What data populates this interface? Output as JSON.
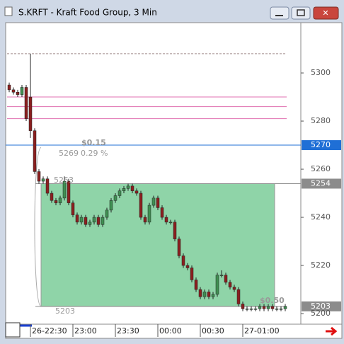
{
  "window_title": "S.KRFT - Kraft Food Group, 3 Min",
  "chart_data": {
    "type": "candlestick",
    "categories": [
      null,
      null,
      null,
      null,
      null,
      "26-22:30",
      null,
      null,
      null,
      null,
      null,
      null,
      null,
      null,
      null,
      "23:00",
      null,
      null,
      null,
      null,
      null,
      null,
      null,
      null,
      null,
      "23:30",
      null,
      null,
      null,
      null,
      null,
      null,
      null,
      null,
      null,
      "00:00",
      null,
      null,
      null,
      null,
      null,
      null,
      null,
      null,
      null,
      "00:30",
      null,
      null,
      null,
      null,
      null,
      null,
      null,
      null,
      null,
      "27-01:00",
      null,
      null,
      null,
      null,
      null,
      null,
      null,
      null,
      null,
      null
    ],
    "open": [
      5295,
      5293,
      5292,
      5291,
      5294,
      5290,
      5276,
      5259,
      5255,
      5256,
      5250,
      5247,
      5246,
      5248,
      5255,
      5246,
      5241,
      5238,
      5240,
      5237,
      5238,
      5240,
      5237,
      5240,
      5243,
      5247,
      5249,
      5251,
      5252,
      5253,
      5251,
      5250,
      5240,
      5238,
      5245,
      5248,
      5244,
      5240,
      5238,
      5238,
      5231,
      5224,
      5220,
      5219,
      5214,
      5210,
      5207,
      5209,
      5207,
      5208,
      5216,
      5216,
      5213,
      5211,
      5210,
      5204,
      5202,
      5202,
      5202,
      5202,
      5203,
      5202,
      5203,
      5202,
      5202,
      5202
    ],
    "high": [
      5296,
      5294,
      5293,
      5295,
      5295,
      5308,
      5277,
      5260,
      5257,
      5257,
      5251,
      5248,
      5249,
      5257,
      5256,
      5247,
      5242,
      5241,
      5241,
      5239,
      5241,
      5241,
      5241,
      5244,
      5248,
      5250,
      5252,
      5253,
      5254,
      5254,
      5252,
      5251,
      5241,
      5246,
      5249,
      5249,
      5245,
      5241,
      5239,
      5239,
      5232,
      5225,
      5221,
      5220,
      5215,
      5211,
      5210,
      5210,
      5209,
      5217,
      5218,
      5217,
      5214,
      5212,
      5211,
      5205,
      5203,
      5203,
      5203,
      5204,
      5204,
      5204,
      5204,
      5203,
      5203,
      5204
    ],
    "low": [
      5292,
      5291,
      5290,
      5290,
      5280,
      5273,
      5258,
      5254,
      5254,
      5249,
      5246,
      5245,
      5245,
      5247,
      5245,
      5240,
      5237,
      5237,
      5236,
      5236,
      5237,
      5236,
      5236,
      5239,
      5242,
      5246,
      5248,
      5250,
      5251,
      5250,
      5249,
      5239,
      5237,
      5237,
      5244,
      5243,
      5239,
      5237,
      5237,
      5230,
      5223,
      5219,
      5218,
      5213,
      5209,
      5206,
      5206,
      5206,
      5206,
      5207,
      5215,
      5212,
      5210,
      5209,
      5203,
      5201,
      5201,
      5201,
      5201,
      5201,
      5201,
      5201,
      5201,
      5201,
      5201,
      5201
    ],
    "close": [
      5293,
      5292,
      5291,
      5294,
      5281,
      5276,
      5259,
      5255,
      5256,
      5250,
      5247,
      5246,
      5248,
      5255,
      5246,
      5241,
      5238,
      5240,
      5237,
      5238,
      5240,
      5237,
      5240,
      5243,
      5247,
      5249,
      5251,
      5252,
      5253,
      5251,
      5250,
      5240,
      5238,
      5245,
      5248,
      5244,
      5240,
      5238,
      5238,
      5231,
      5224,
      5220,
      5219,
      5214,
      5210,
      5207,
      5209,
      5207,
      5208,
      5216,
      5216,
      5213,
      5211,
      5210,
      5204,
      5202,
      5202,
      5202,
      5202,
      5203,
      5202,
      5203,
      5202,
      5202,
      5202,
      5203
    ],
    "up_color": "#3f8f52",
    "down_color": "#8a1f1f",
    "ylim": [
      5195.6,
      5320.9
    ],
    "yticks": [
      5200,
      5220,
      5240,
      5260,
      5280,
      5300
    ],
    "reference_lines": [
      {
        "value": 5308,
        "color": "#a08a8a"
      },
      {
        "value": 5290,
        "color": "#e070b0"
      },
      {
        "value": 5286,
        "color": "#e070b0"
      },
      {
        "value": 5281,
        "color": "#e070b0"
      }
    ],
    "price_markers": [
      {
        "value": 5270,
        "color": "#1f6fd6"
      },
      {
        "value": 5254,
        "color": "#8c8c8c"
      },
      {
        "value": 5203,
        "color": "#8c8c8c"
      }
    ],
    "range_color": "#8fd4a8",
    "annotations": [
      "$0.15",
      "5269",
      "0.29 %",
      "5253",
      "5203",
      "$0.50"
    ]
  }
}
